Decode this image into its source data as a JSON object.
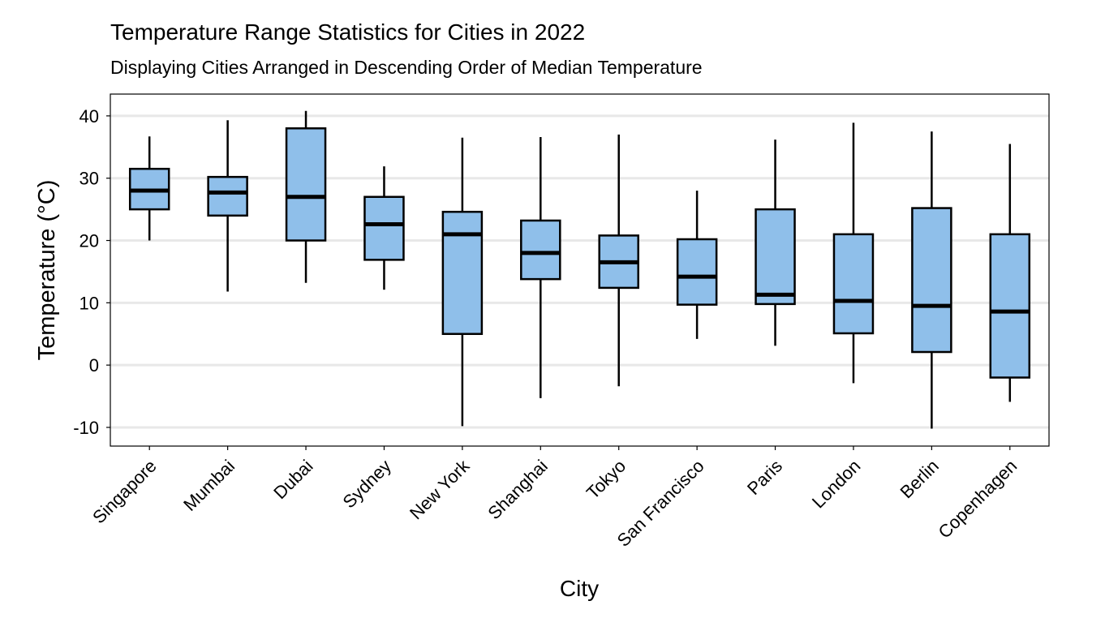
{
  "chart_data": {
    "type": "boxplot",
    "title": "Temperature Range Statistics for Cities in 2022",
    "subtitle": "Displaying Cities Arranged in Descending Order of Median Temperature",
    "xlabel": "City",
    "ylabel": "Temperature (°C)",
    "ylim": [
      -13,
      43.5
    ],
    "yticks": [
      -10,
      0,
      10,
      20,
      30,
      40
    ],
    "grid": "horizontal",
    "box_color": "#8fbfea",
    "line_color": "#000000",
    "grid_color": "#e8e8e8",
    "categories": [
      "Singapore",
      "Mumbai",
      "Dubai",
      "Sydney",
      "New York",
      "Shanghai",
      "Tokyo",
      "San Francisco",
      "Paris",
      "London",
      "Berlin",
      "Copenhagen"
    ],
    "boxes": [
      {
        "min": 20,
        "q1": 25,
        "median": 28,
        "q3": 31.5,
        "max": 36.7
      },
      {
        "min": 11.8,
        "q1": 24,
        "median": 27.7,
        "q3": 30.2,
        "max": 39.3
      },
      {
        "min": 13.2,
        "q1": 20,
        "median": 27,
        "q3": 38,
        "max": 40.8
      },
      {
        "min": 12.1,
        "q1": 16.9,
        "median": 22.6,
        "q3": 27,
        "max": 31.9
      },
      {
        "min": -9.8,
        "q1": 5,
        "median": 21,
        "q3": 24.6,
        "max": 36.5
      },
      {
        "min": -5.3,
        "q1": 13.8,
        "median": 18,
        "q3": 23.2,
        "max": 36.6
      },
      {
        "min": -3.4,
        "q1": 12.4,
        "median": 16.5,
        "q3": 20.8,
        "max": 37
      },
      {
        "min": 4.2,
        "q1": 9.7,
        "median": 14.2,
        "q3": 20.2,
        "max": 28
      },
      {
        "min": 3.1,
        "q1": 9.8,
        "median": 11.3,
        "q3": 25,
        "max": 36.2
      },
      {
        "min": -2.9,
        "q1": 5.1,
        "median": 10.3,
        "q3": 21,
        "max": 38.9
      },
      {
        "min": -10.2,
        "q1": 2.1,
        "median": 9.5,
        "q3": 25.2,
        "max": 37.5
      },
      {
        "min": -5.9,
        "q1": -2,
        "median": 8.6,
        "q3": 21,
        "max": 35.5
      }
    ]
  }
}
